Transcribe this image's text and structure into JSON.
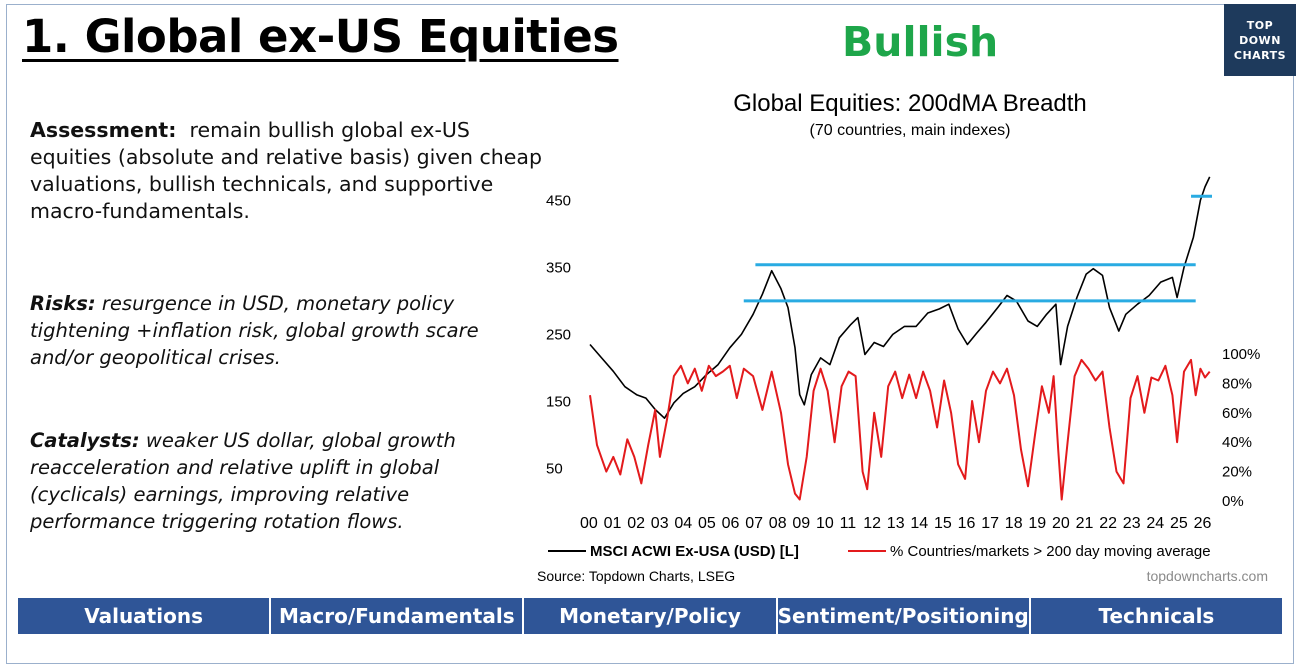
{
  "header": {
    "title": "1. Global ex-US Equities",
    "stance": "Bullish",
    "logo_lines": [
      "TOP",
      "DOWN",
      "CHARTS"
    ]
  },
  "text": {
    "assessment_lead": "Assessment:",
    "assessment_body": "remain bullish global ex-US equities (absolute and relative basis) given cheap valuations, bullish technicals, and supportive macro-fundamentals.",
    "risks_lead": "Risks:",
    "risks_body": "resurgence in USD, monetary policy tightening +inflation risk, global growth scare and/or geopolitical crises.",
    "catalysts_lead": "Catalysts:",
    "catalysts_body": "weaker US dollar, global growth reacceleration and relative uplift in global (cyclicals) earnings, improving relative performance triggering rotation flows."
  },
  "chart_data": {
    "type": "line",
    "title": "Global Equities: 200dMA Breadth",
    "subtitle": "(70 countries, main indexes)",
    "source": "Source: Topdown Charts, LSEG",
    "watermark": "topdowncharts.com",
    "x_ticks": [
      "00",
      "01",
      "02",
      "03",
      "04",
      "05",
      "06",
      "07",
      "08",
      "09",
      "10",
      "11",
      "12",
      "13",
      "14",
      "15",
      "16",
      "17",
      "18",
      "19",
      "20",
      "21",
      "22",
      "23",
      "24",
      "25",
      "26"
    ],
    "x_range": [
      2000,
      2026.7
    ],
    "y_left": {
      "ticks": [
        50,
        150,
        250,
        350,
        450
      ],
      "range": [
        0,
        540
      ]
    },
    "y_right": {
      "ticks": [
        "0%",
        "20%",
        "40%",
        "60%",
        "80%",
        "100%"
      ],
      "range": [
        0,
        100
      ]
    },
    "series": [
      {
        "name": "MSCI ACWI Ex-USA (USD) [L]",
        "axis": "left",
        "color": "#000000",
        "points": [
          [
            2000.0,
            235
          ],
          [
            2000.5,
            215
          ],
          [
            2001.0,
            195
          ],
          [
            2001.5,
            172
          ],
          [
            2002.0,
            160
          ],
          [
            2002.4,
            155
          ],
          [
            2002.8,
            138
          ],
          [
            2003.2,
            125
          ],
          [
            2003.6,
            148
          ],
          [
            2004.0,
            162
          ],
          [
            2004.5,
            172
          ],
          [
            2005.0,
            190
          ],
          [
            2005.5,
            205
          ],
          [
            2006.0,
            230
          ],
          [
            2006.5,
            250
          ],
          [
            2007.0,
            280
          ],
          [
            2007.4,
            310
          ],
          [
            2007.8,
            345
          ],
          [
            2008.2,
            318
          ],
          [
            2008.5,
            290
          ],
          [
            2008.8,
            230
          ],
          [
            2009.0,
            160
          ],
          [
            2009.2,
            145
          ],
          [
            2009.5,
            190
          ],
          [
            2009.9,
            215
          ],
          [
            2010.3,
            205
          ],
          [
            2010.7,
            245
          ],
          [
            2011.2,
            265
          ],
          [
            2011.5,
            275
          ],
          [
            2011.8,
            220
          ],
          [
            2012.2,
            238
          ],
          [
            2012.6,
            232
          ],
          [
            2013.0,
            250
          ],
          [
            2013.5,
            262
          ],
          [
            2014.0,
            262
          ],
          [
            2014.5,
            282
          ],
          [
            2015.0,
            288
          ],
          [
            2015.4,
            295
          ],
          [
            2015.8,
            258
          ],
          [
            2016.2,
            235
          ],
          [
            2016.6,
            252
          ],
          [
            2017.0,
            268
          ],
          [
            2017.5,
            290
          ],
          [
            2017.9,
            308
          ],
          [
            2018.3,
            300
          ],
          [
            2018.8,
            270
          ],
          [
            2019.2,
            262
          ],
          [
            2019.6,
            280
          ],
          [
            2020.0,
            295
          ],
          [
            2020.2,
            205
          ],
          [
            2020.5,
            262
          ],
          [
            2020.9,
            305
          ],
          [
            2021.3,
            340
          ],
          [
            2021.6,
            348
          ],
          [
            2022.0,
            338
          ],
          [
            2022.3,
            290
          ],
          [
            2022.7,
            255
          ],
          [
            2023.0,
            280
          ],
          [
            2023.5,
            295
          ],
          [
            2024.0,
            308
          ],
          [
            2024.5,
            328
          ],
          [
            2025.0,
            335
          ],
          [
            2025.2,
            305
          ],
          [
            2025.5,
            350
          ],
          [
            2025.9,
            395
          ],
          [
            2026.2,
            450
          ],
          [
            2026.4,
            470
          ],
          [
            2026.6,
            485
          ]
        ]
      },
      {
        "name": "% Countries/markets > 200 day moving average",
        "axis": "right",
        "color": "#e31a1c",
        "points": [
          [
            2000.0,
            72
          ],
          [
            2000.3,
            38
          ],
          [
            2000.7,
            20
          ],
          [
            2001.0,
            30
          ],
          [
            2001.3,
            18
          ],
          [
            2001.6,
            42
          ],
          [
            2001.9,
            30
          ],
          [
            2002.2,
            12
          ],
          [
            2002.5,
            38
          ],
          [
            2002.8,
            62
          ],
          [
            2003.0,
            30
          ],
          [
            2003.3,
            55
          ],
          [
            2003.6,
            85
          ],
          [
            2003.9,
            92
          ],
          [
            2004.2,
            80
          ],
          [
            2004.5,
            90
          ],
          [
            2004.8,
            75
          ],
          [
            2005.1,
            92
          ],
          [
            2005.4,
            85
          ],
          [
            2005.7,
            88
          ],
          [
            2006.0,
            92
          ],
          [
            2006.3,
            70
          ],
          [
            2006.6,
            90
          ],
          [
            2007.0,
            85
          ],
          [
            2007.4,
            62
          ],
          [
            2007.8,
            88
          ],
          [
            2008.2,
            60
          ],
          [
            2008.5,
            25
          ],
          [
            2008.8,
            5
          ],
          [
            2009.0,
            1
          ],
          [
            2009.3,
            30
          ],
          [
            2009.6,
            75
          ],
          [
            2009.9,
            90
          ],
          [
            2010.2,
            75
          ],
          [
            2010.5,
            40
          ],
          [
            2010.8,
            78
          ],
          [
            2011.1,
            88
          ],
          [
            2011.4,
            85
          ],
          [
            2011.7,
            20
          ],
          [
            2011.9,
            8
          ],
          [
            2012.2,
            60
          ],
          [
            2012.5,
            30
          ],
          [
            2012.8,
            78
          ],
          [
            2013.1,
            88
          ],
          [
            2013.4,
            70
          ],
          [
            2013.7,
            86
          ],
          [
            2014.0,
            70
          ],
          [
            2014.3,
            88
          ],
          [
            2014.6,
            75
          ],
          [
            2014.9,
            50
          ],
          [
            2015.2,
            82
          ],
          [
            2015.5,
            60
          ],
          [
            2015.8,
            25
          ],
          [
            2016.1,
            15
          ],
          [
            2016.4,
            68
          ],
          [
            2016.7,
            40
          ],
          [
            2017.0,
            75
          ],
          [
            2017.3,
            88
          ],
          [
            2017.6,
            80
          ],
          [
            2017.9,
            90
          ],
          [
            2018.2,
            72
          ],
          [
            2018.5,
            35
          ],
          [
            2018.8,
            10
          ],
          [
            2019.1,
            45
          ],
          [
            2019.4,
            78
          ],
          [
            2019.7,
            60
          ],
          [
            2019.9,
            85
          ],
          [
            2020.1,
            35
          ],
          [
            2020.25,
            1
          ],
          [
            2020.5,
            40
          ],
          [
            2020.8,
            85
          ],
          [
            2021.1,
            96
          ],
          [
            2021.4,
            90
          ],
          [
            2021.7,
            82
          ],
          [
            2022.0,
            88
          ],
          [
            2022.3,
            50
          ],
          [
            2022.6,
            20
          ],
          [
            2022.9,
            12
          ],
          [
            2023.2,
            70
          ],
          [
            2023.5,
            85
          ],
          [
            2023.8,
            60
          ],
          [
            2024.1,
            84
          ],
          [
            2024.4,
            82
          ],
          [
            2024.7,
            92
          ],
          [
            2025.0,
            72
          ],
          [
            2025.2,
            40
          ],
          [
            2025.5,
            88
          ],
          [
            2025.8,
            96
          ],
          [
            2026.0,
            72
          ],
          [
            2026.2,
            90
          ],
          [
            2026.4,
            84
          ],
          [
            2026.6,
            88
          ]
        ]
      }
    ],
    "resistance_lines": [
      {
        "y": 456,
        "x_start": 2025.8,
        "x_end": 2026.7
      },
      {
        "y": 354,
        "x_start": 2007.1,
        "x_end": 2026.0
      },
      {
        "y": 300,
        "x_start": 2006.6,
        "x_end": 2026.0
      }
    ],
    "line_color": "#29abe2",
    "grid": false,
    "legend_position": "bottom"
  },
  "footer": {
    "categories": [
      "Valuations",
      "Macro/Fundamentals",
      "Monetary/Policy",
      "Sentiment/Positioning",
      "Technicals"
    ],
    "peek_colors": [
      "#1ea64a",
      "#1ea64a",
      "#e31a1c",
      "#e31a1c",
      "#1ea64a"
    ]
  }
}
